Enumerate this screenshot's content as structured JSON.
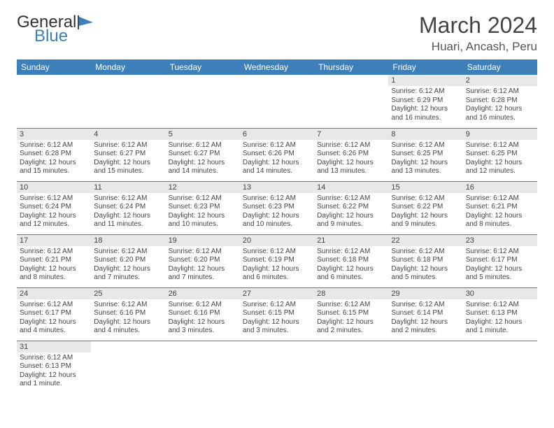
{
  "logo": {
    "text1": "General",
    "text2": "Blue"
  },
  "title": "March 2024",
  "location": "Huari, Ancash, Peru",
  "colors": {
    "header_bg": "#3d7fb8",
    "header_text": "#ffffff",
    "daynum_bg": "#e8e8e8",
    "row_border": "#3d7fb8",
    "logo_blue": "#3d7fb8"
  },
  "day_headers": [
    "Sunday",
    "Monday",
    "Tuesday",
    "Wednesday",
    "Thursday",
    "Friday",
    "Saturday"
  ],
  "weeks": [
    [
      null,
      null,
      null,
      null,
      null,
      {
        "n": "1",
        "sunrise": "Sunrise: 6:12 AM",
        "sunset": "Sunset: 6:29 PM",
        "daylight": "Daylight: 12 hours and 16 minutes."
      },
      {
        "n": "2",
        "sunrise": "Sunrise: 6:12 AM",
        "sunset": "Sunset: 6:28 PM",
        "daylight": "Daylight: 12 hours and 16 minutes."
      }
    ],
    [
      {
        "n": "3",
        "sunrise": "Sunrise: 6:12 AM",
        "sunset": "Sunset: 6:28 PM",
        "daylight": "Daylight: 12 hours and 15 minutes."
      },
      {
        "n": "4",
        "sunrise": "Sunrise: 6:12 AM",
        "sunset": "Sunset: 6:27 PM",
        "daylight": "Daylight: 12 hours and 15 minutes."
      },
      {
        "n": "5",
        "sunrise": "Sunrise: 6:12 AM",
        "sunset": "Sunset: 6:27 PM",
        "daylight": "Daylight: 12 hours and 14 minutes."
      },
      {
        "n": "6",
        "sunrise": "Sunrise: 6:12 AM",
        "sunset": "Sunset: 6:26 PM",
        "daylight": "Daylight: 12 hours and 14 minutes."
      },
      {
        "n": "7",
        "sunrise": "Sunrise: 6:12 AM",
        "sunset": "Sunset: 6:26 PM",
        "daylight": "Daylight: 12 hours and 13 minutes."
      },
      {
        "n": "8",
        "sunrise": "Sunrise: 6:12 AM",
        "sunset": "Sunset: 6:25 PM",
        "daylight": "Daylight: 12 hours and 13 minutes."
      },
      {
        "n": "9",
        "sunrise": "Sunrise: 6:12 AM",
        "sunset": "Sunset: 6:25 PM",
        "daylight": "Daylight: 12 hours and 12 minutes."
      }
    ],
    [
      {
        "n": "10",
        "sunrise": "Sunrise: 6:12 AM",
        "sunset": "Sunset: 6:24 PM",
        "daylight": "Daylight: 12 hours and 12 minutes."
      },
      {
        "n": "11",
        "sunrise": "Sunrise: 6:12 AM",
        "sunset": "Sunset: 6:24 PM",
        "daylight": "Daylight: 12 hours and 11 minutes."
      },
      {
        "n": "12",
        "sunrise": "Sunrise: 6:12 AM",
        "sunset": "Sunset: 6:23 PM",
        "daylight": "Daylight: 12 hours and 10 minutes."
      },
      {
        "n": "13",
        "sunrise": "Sunrise: 6:12 AM",
        "sunset": "Sunset: 6:23 PM",
        "daylight": "Daylight: 12 hours and 10 minutes."
      },
      {
        "n": "14",
        "sunrise": "Sunrise: 6:12 AM",
        "sunset": "Sunset: 6:22 PM",
        "daylight": "Daylight: 12 hours and 9 minutes."
      },
      {
        "n": "15",
        "sunrise": "Sunrise: 6:12 AM",
        "sunset": "Sunset: 6:22 PM",
        "daylight": "Daylight: 12 hours and 9 minutes."
      },
      {
        "n": "16",
        "sunrise": "Sunrise: 6:12 AM",
        "sunset": "Sunset: 6:21 PM",
        "daylight": "Daylight: 12 hours and 8 minutes."
      }
    ],
    [
      {
        "n": "17",
        "sunrise": "Sunrise: 6:12 AM",
        "sunset": "Sunset: 6:21 PM",
        "daylight": "Daylight: 12 hours and 8 minutes."
      },
      {
        "n": "18",
        "sunrise": "Sunrise: 6:12 AM",
        "sunset": "Sunset: 6:20 PM",
        "daylight": "Daylight: 12 hours and 7 minutes."
      },
      {
        "n": "19",
        "sunrise": "Sunrise: 6:12 AM",
        "sunset": "Sunset: 6:20 PM",
        "daylight": "Daylight: 12 hours and 7 minutes."
      },
      {
        "n": "20",
        "sunrise": "Sunrise: 6:12 AM",
        "sunset": "Sunset: 6:19 PM",
        "daylight": "Daylight: 12 hours and 6 minutes."
      },
      {
        "n": "21",
        "sunrise": "Sunrise: 6:12 AM",
        "sunset": "Sunset: 6:18 PM",
        "daylight": "Daylight: 12 hours and 6 minutes."
      },
      {
        "n": "22",
        "sunrise": "Sunrise: 6:12 AM",
        "sunset": "Sunset: 6:18 PM",
        "daylight": "Daylight: 12 hours and 5 minutes."
      },
      {
        "n": "23",
        "sunrise": "Sunrise: 6:12 AM",
        "sunset": "Sunset: 6:17 PM",
        "daylight": "Daylight: 12 hours and 5 minutes."
      }
    ],
    [
      {
        "n": "24",
        "sunrise": "Sunrise: 6:12 AM",
        "sunset": "Sunset: 6:17 PM",
        "daylight": "Daylight: 12 hours and 4 minutes."
      },
      {
        "n": "25",
        "sunrise": "Sunrise: 6:12 AM",
        "sunset": "Sunset: 6:16 PM",
        "daylight": "Daylight: 12 hours and 4 minutes."
      },
      {
        "n": "26",
        "sunrise": "Sunrise: 6:12 AM",
        "sunset": "Sunset: 6:16 PM",
        "daylight": "Daylight: 12 hours and 3 minutes."
      },
      {
        "n": "27",
        "sunrise": "Sunrise: 6:12 AM",
        "sunset": "Sunset: 6:15 PM",
        "daylight": "Daylight: 12 hours and 3 minutes."
      },
      {
        "n": "28",
        "sunrise": "Sunrise: 6:12 AM",
        "sunset": "Sunset: 6:15 PM",
        "daylight": "Daylight: 12 hours and 2 minutes."
      },
      {
        "n": "29",
        "sunrise": "Sunrise: 6:12 AM",
        "sunset": "Sunset: 6:14 PM",
        "daylight": "Daylight: 12 hours and 2 minutes."
      },
      {
        "n": "30",
        "sunrise": "Sunrise: 6:12 AM",
        "sunset": "Sunset: 6:13 PM",
        "daylight": "Daylight: 12 hours and 1 minute."
      }
    ],
    [
      {
        "n": "31",
        "sunrise": "Sunrise: 6:12 AM",
        "sunset": "Sunset: 6:13 PM",
        "daylight": "Daylight: 12 hours and 1 minute."
      },
      null,
      null,
      null,
      null,
      null,
      null
    ]
  ]
}
